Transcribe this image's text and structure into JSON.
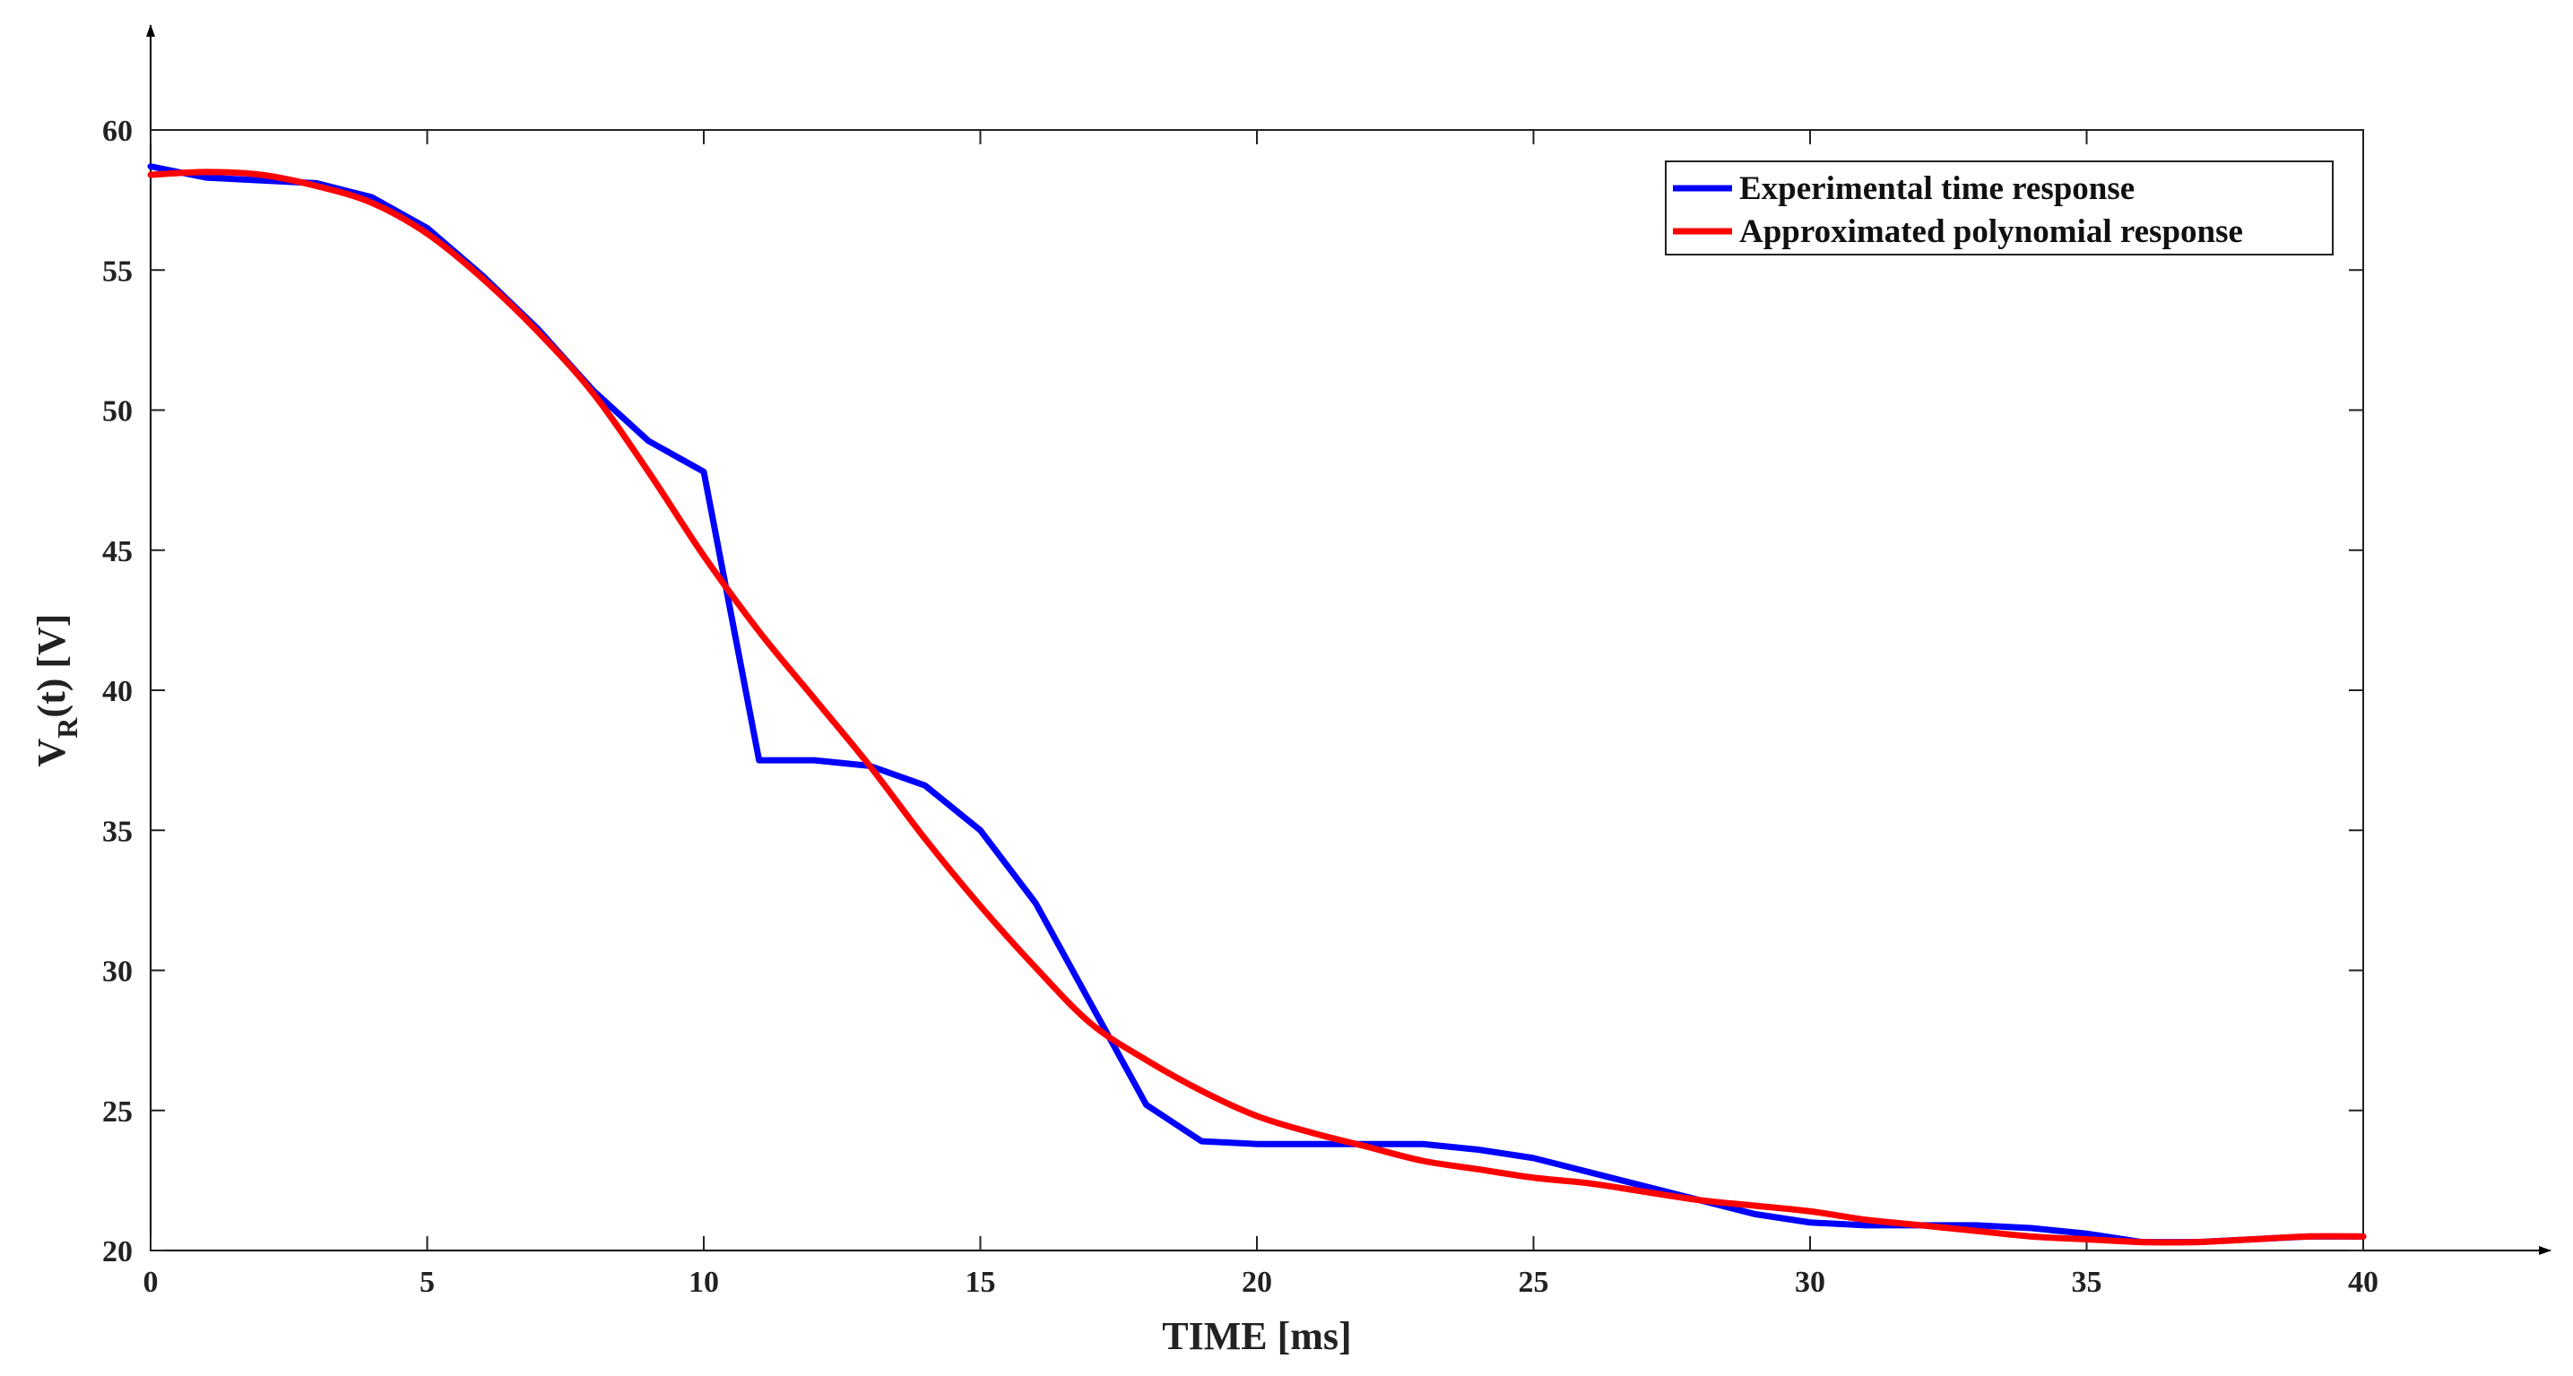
{
  "chart_data": {
    "type": "line",
    "title": "",
    "xlabel": "TIME [ms]",
    "ylabel_main": "V",
    "ylabel_sub": "R",
    "ylabel_rest": "(t) [V]",
    "xlim": [
      0,
      40
    ],
    "ylim": [
      20,
      60
    ],
    "xticks": [
      0,
      5,
      10,
      15,
      20,
      25,
      30,
      35,
      40
    ],
    "yticks": [
      20,
      25,
      30,
      35,
      40,
      45,
      50,
      55,
      60
    ],
    "grid": false,
    "legend_position": "top-right",
    "series": [
      {
        "name": "Experimental time response",
        "color": "#0000ff",
        "x": [
          0,
          1,
          2,
          3,
          4,
          5,
          6,
          7,
          8,
          9,
          10,
          11,
          12,
          13,
          14,
          15,
          16,
          17,
          18,
          19,
          20,
          21,
          22,
          23,
          24,
          25,
          26,
          27,
          28,
          29,
          30,
          31,
          32,
          33,
          34,
          35,
          36,
          37,
          38,
          39,
          40
        ],
        "values": [
          58.7,
          58.3,
          58.2,
          58.1,
          57.6,
          56.5,
          54.8,
          52.9,
          50.7,
          48.9,
          47.8,
          37.5,
          37.5,
          37.3,
          36.6,
          35.0,
          32.4,
          28.8,
          25.2,
          23.9,
          23.8,
          23.8,
          23.8,
          23.8,
          23.6,
          23.3,
          22.8,
          22.3,
          21.8,
          21.3,
          21.0,
          20.9,
          20.9,
          20.9,
          20.8,
          20.6,
          20.3,
          20.3,
          20.4,
          20.5,
          20.5
        ]
      },
      {
        "name": "Approximated polynomial response",
        "color": "#ff0000",
        "x": [
          0,
          1,
          2,
          3,
          4,
          5,
          6,
          7,
          8,
          9,
          10,
          11,
          12,
          13,
          14,
          15,
          16,
          17,
          18,
          19,
          20,
          21,
          22,
          23,
          24,
          25,
          26,
          27,
          28,
          29,
          30,
          31,
          32,
          33,
          34,
          35,
          36,
          37,
          38,
          39,
          40
        ],
        "values": [
          58.4,
          58.5,
          58.4,
          58.0,
          57.4,
          56.3,
          54.7,
          52.8,
          50.6,
          47.8,
          44.8,
          42.1,
          39.7,
          37.3,
          34.7,
          32.3,
          30.1,
          28.1,
          26.8,
          25.7,
          24.8,
          24.2,
          23.7,
          23.2,
          22.9,
          22.6,
          22.4,
          22.1,
          21.8,
          21.6,
          21.4,
          21.1,
          20.9,
          20.7,
          20.5,
          20.4,
          20.3,
          20.3,
          20.4,
          20.5,
          20.5
        ]
      }
    ]
  }
}
